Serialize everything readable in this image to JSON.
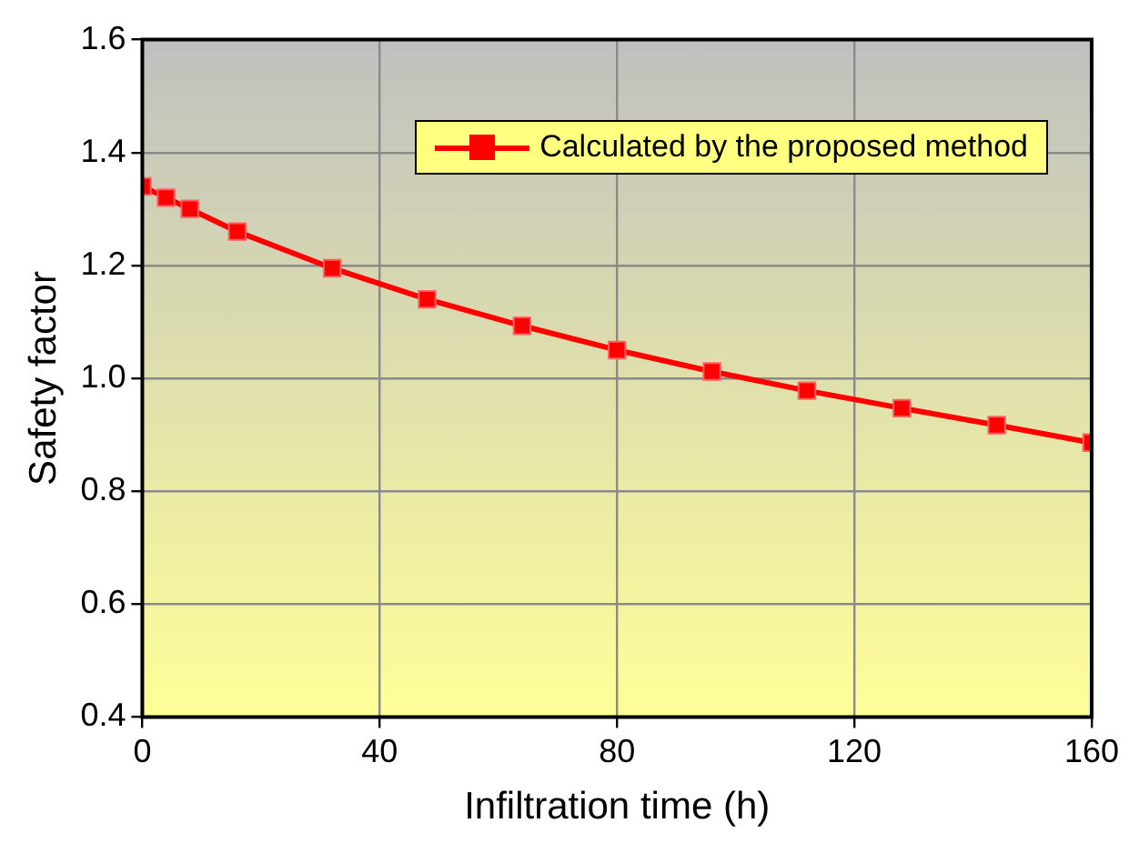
{
  "chart_data": {
    "type": "line",
    "xlabel": "Infiltration time (h)",
    "ylabel": "Safety factor",
    "x": [
      0,
      4,
      8,
      16,
      32,
      48,
      64,
      80,
      96,
      112,
      128,
      144,
      160
    ],
    "series": [
      {
        "name": "Calculated by the proposed method",
        "color": "#ff0000",
        "values": [
          1.34,
          1.32,
          1.3,
          1.26,
          1.195,
          1.14,
          1.093,
          1.05,
          1.012,
          0.978,
          0.947,
          0.917,
          0.886
        ]
      }
    ],
    "xlim": [
      0,
      160
    ],
    "xticks": [
      0,
      40,
      80,
      120,
      160
    ],
    "ylim": [
      0.4,
      1.6
    ],
    "yticks": [
      0.4,
      0.6,
      0.8,
      {
        "value": 1,
        "label": "1.0"
      },
      1.2,
      1.4,
      1.6
    ],
    "grid": true,
    "legend": "top right",
    "marker": "square",
    "line_style": "solid"
  }
}
